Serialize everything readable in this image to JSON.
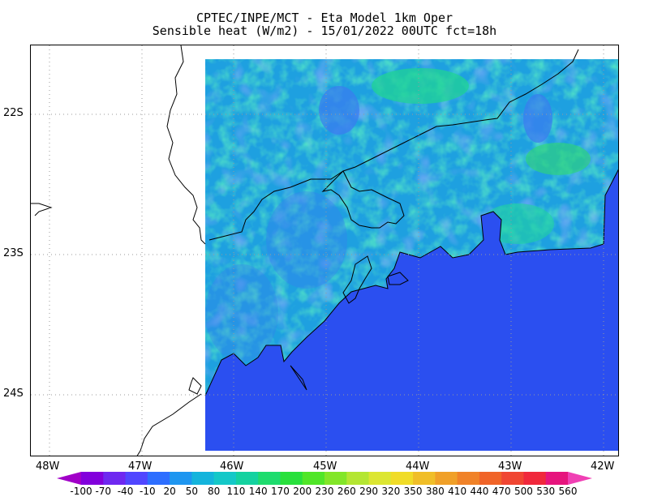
{
  "title": {
    "line1": "CPTEC/INPE/MCT -  Eta Model 1km Oper",
    "line2": "Sensible heat (W/m2) - 15/01/2022 00UTC fct=18h"
  },
  "map": {
    "lat_labels": [
      "22S",
      "23S",
      "24S"
    ],
    "lon_labels": [
      "48W",
      "47W",
      "46W",
      "45W",
      "44W",
      "43W",
      "42W"
    ],
    "gridlines": "dotted",
    "ocean_color": "#2b4ff0",
    "land_color": "#1e9be0",
    "coastline_color": "#000000"
  },
  "colorbar": {
    "levels": [
      "-100",
      "-70",
      "-40",
      "-10",
      "20",
      "50",
      "80",
      "110",
      "140",
      "170",
      "200",
      "230",
      "260",
      "290",
      "320",
      "350",
      "380",
      "410",
      "440",
      "470",
      "500",
      "530",
      "560"
    ],
    "colors": [
      "#a100c8",
      "#8200dc",
      "#6e28f0",
      "#5046ff",
      "#2d6eff",
      "#1e96f0",
      "#14b4dc",
      "#14c8c8",
      "#14d2a0",
      "#1edc6e",
      "#28e03c",
      "#50e628",
      "#82e628",
      "#b4e632",
      "#dce632",
      "#f0dc28",
      "#f0be28",
      "#f0a028",
      "#f08228",
      "#f06428",
      "#f04632",
      "#f0283c",
      "#e6147d",
      "#f040b4"
    ]
  }
}
